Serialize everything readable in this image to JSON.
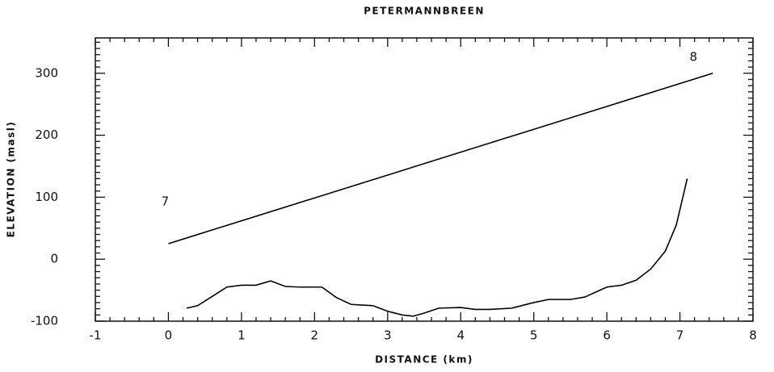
{
  "chart_data": {
    "type": "line",
    "title": "PETERMANNBREEN",
    "x_label": "DISTANCE (km)",
    "y_label": "ELEVATION (masl)",
    "series": [
      {
        "color": "#000000",
        "x": [
          0,
          7.45
        ],
        "values": [
          25,
          300
        ]
      },
      {
        "color": "#000000",
        "x": [
          0.25,
          0.4,
          0.6,
          0.8,
          1.0,
          1.2,
          1.4,
          1.6,
          1.8,
          2.0,
          2.1,
          2.3,
          2.5,
          2.8,
          3.0,
          3.2,
          3.35,
          3.5,
          3.7,
          4.0,
          4.2,
          4.4,
          4.7,
          5.0,
          5.2,
          5.5,
          5.7,
          5.85,
          6.0,
          6.2,
          6.4,
          6.6,
          6.8,
          6.95,
          7.1
        ],
        "values": [
          -79,
          -75,
          -60,
          -45,
          -42,
          -42,
          -35,
          -44,
          -45,
          -45,
          -45,
          -62,
          -73,
          -75,
          -84,
          -90,
          -92,
          -87,
          -79,
          -78,
          -81,
          -81,
          -79,
          -70,
          -65,
          -65,
          -61,
          -53,
          -45,
          -42,
          -34,
          -16,
          13,
          55,
          130
        ]
      }
    ],
    "annotations": [
      "7",
      "8"
    ],
    "xlim": [
      -1,
      8
    ],
    "xticks": [
      -1,
      0,
      1,
      2,
      3,
      4,
      5,
      6,
      7,
      8
    ],
    "ylim": [
      -100,
      357
    ],
    "yticks": [
      -100,
      0,
      100,
      200,
      300
    ],
    "grid": false
  }
}
